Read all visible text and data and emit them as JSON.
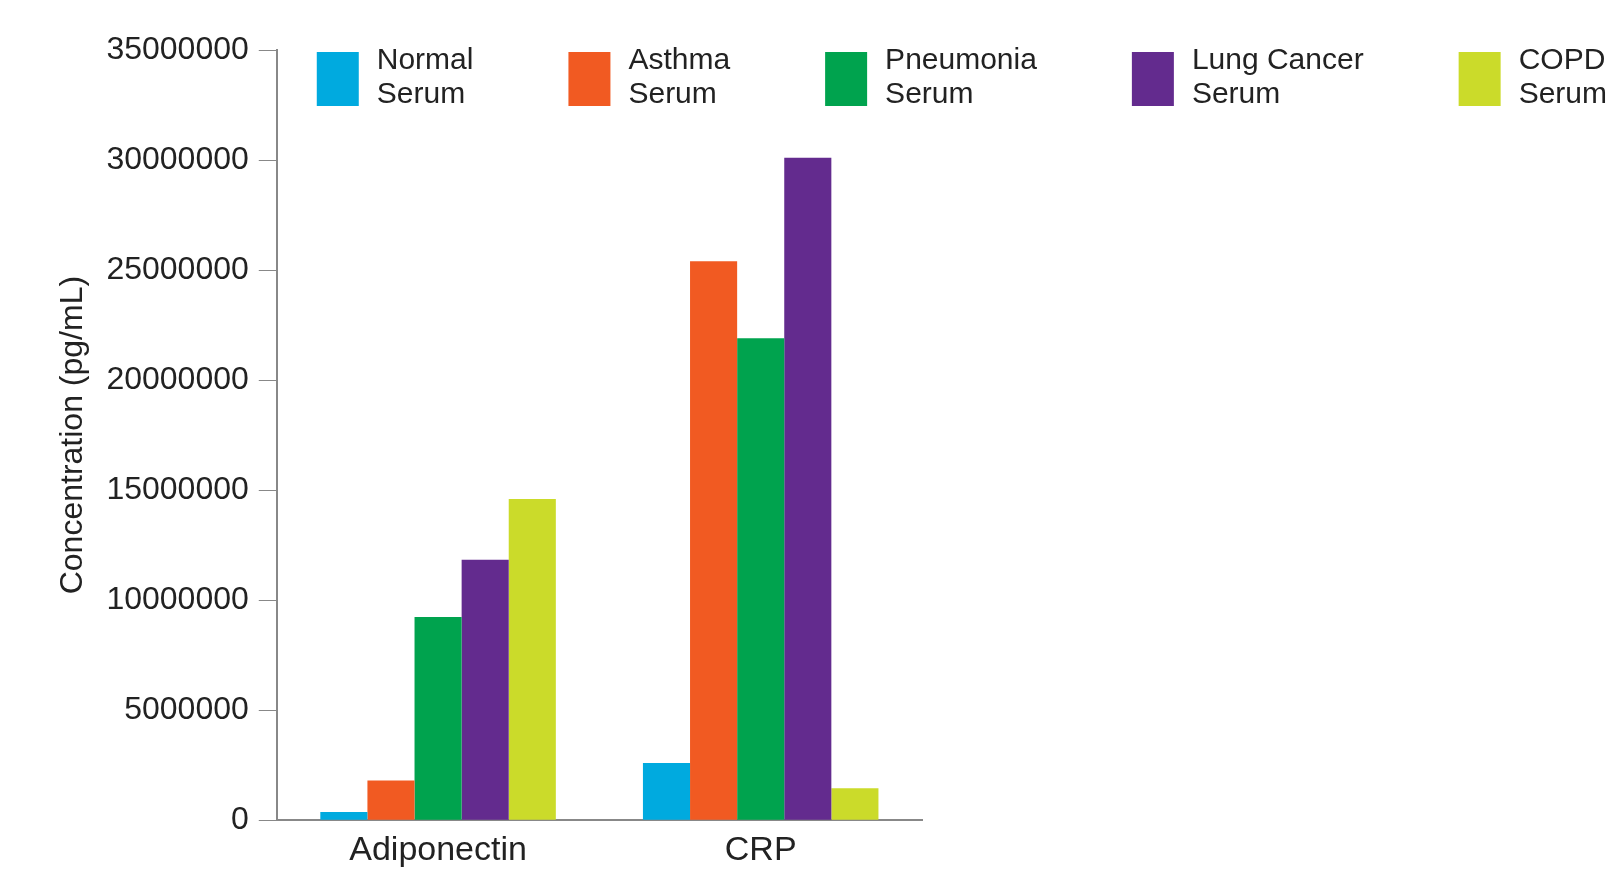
{
  "chart_data": {
    "type": "bar",
    "ylabel": "Concentration (pg/mL)",
    "categories": [
      "Adiponectin",
      "CRP"
    ],
    "series": [
      {
        "name": "Normal Serum",
        "color": "#00aadf",
        "values": [
          370000,
          2600000
        ]
      },
      {
        "name": "Asthma Serum",
        "color": "#f15a22",
        "values": [
          1800000,
          25400000
        ]
      },
      {
        "name": "Pneumonia Serum",
        "color": "#00a34e",
        "values": [
          9230000,
          21900000
        ]
      },
      {
        "name": "Lung Cancer Serum",
        "color": "#632b8e",
        "values": [
          11840000,
          30100000
        ]
      },
      {
        "name": "COPD Serum",
        "color": "#cbdb2a",
        "values": [
          14600000,
          1450000
        ]
      }
    ],
    "ylim": [
      0,
      35000000
    ],
    "yticks": [
      0,
      5000000,
      10000000,
      15000000,
      20000000,
      25000000,
      30000000,
      35000000
    ],
    "grid": false,
    "legend": "top"
  }
}
